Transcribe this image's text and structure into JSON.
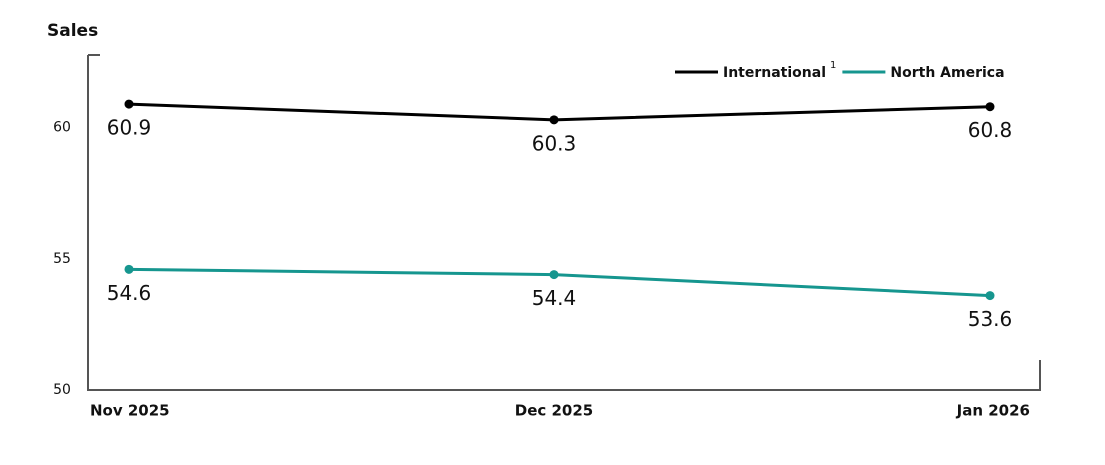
{
  "chart_data": {
    "type": "line",
    "title": "Sales",
    "categories": [
      "Nov 2025",
      "Dec 2025",
      "Jan 2026"
    ],
    "series": [
      {
        "name": "International",
        "footnote": "1",
        "color": "#000000",
        "values": [
          60.9,
          60.3,
          60.8
        ]
      },
      {
        "name": "North America",
        "color": "#16968f",
        "values": [
          54.6,
          54.4,
          53.6
        ]
      }
    ],
    "ylim": [
      50,
      63
    ],
    "yticks": [
      50,
      55,
      60
    ],
    "grid": false,
    "legend": "top-right"
  }
}
